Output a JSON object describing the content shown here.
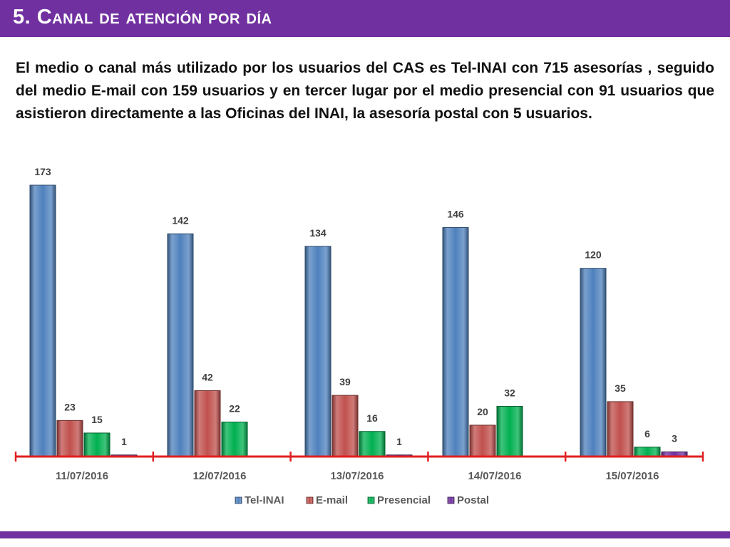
{
  "slide": {
    "title": "5. Canal de atención por día",
    "paragraph": "El medio o canal más utilizado por los usuarios del CAS es Tel-INAI con 715 asesorías , seguido del medio E-mail con 159 usuarios y en tercer lugar por el medio presencial con 91 usuarios que  asistieron directamente a las Oficinas del INAI, la asesoría postal con 5 usuarios."
  },
  "colors": {
    "accent": "#7030a0",
    "tel_inai": "#4f81bd",
    "email": "#c0504d",
    "presencial": "#00b050",
    "postal": "#7030a0",
    "axis": "#e02020"
  },
  "chart_data": {
    "type": "bar",
    "categories": [
      "11/07/2016",
      "12/07/2016",
      "13/07/2016",
      "14/07/2016",
      "15/07/2016"
    ],
    "series": [
      {
        "name": "Tel-INAI",
        "color": "#4f81bd",
        "values": [
          173,
          142,
          134,
          146,
          120
        ]
      },
      {
        "name": "E-mail",
        "color": "#c0504d",
        "values": [
          23,
          42,
          39,
          20,
          35
        ]
      },
      {
        "name": "Presencial",
        "color": "#00b050",
        "values": [
          15,
          22,
          16,
          32,
          6
        ]
      },
      {
        "name": "Postal",
        "color": "#7030a0",
        "values": [
          1,
          null,
          1,
          null,
          3
        ]
      }
    ],
    "ylim": [
      0,
      173
    ],
    "legend_position": "bottom",
    "grid": false,
    "data_labels": true
  }
}
